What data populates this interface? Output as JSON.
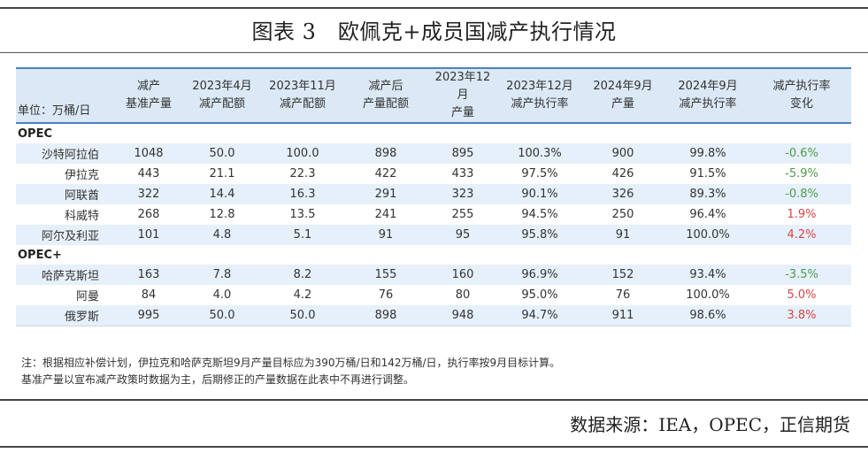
{
  "title": "图表 3　欧佩克+成员国减产执行情况",
  "colors": {
    "header_bg": "#dbe8f5",
    "stripe_bg": "#e6f0fa",
    "negative_text": "#4e9a4e",
    "positive_text": "#d64545",
    "header_border": "#4f81bd"
  },
  "table": {
    "headers": [
      [
        "单位：万桶/日"
      ],
      [
        "减产",
        "基准产量"
      ],
      [
        "2023年4月",
        "减产配额"
      ],
      [
        "2023年11月",
        "减产配额"
      ],
      [
        "减产后",
        "产量配额"
      ],
      [
        "2023年12月",
        "产量"
      ],
      [
        "2023年12月",
        "减产执行率"
      ],
      [
        "2024年9月",
        "产量"
      ],
      [
        "2024年9月",
        "减产执行率"
      ],
      [
        "减产执行率",
        "变化"
      ]
    ],
    "groups": [
      {
        "name": "OPEC",
        "rows": [
          [
            "沙特阿拉伯",
            "1048",
            "50.0",
            "100.0",
            "898",
            "895",
            "100.3%",
            "900",
            "99.8%",
            "-0.6%"
          ],
          [
            "伊拉克",
            "443",
            "21.1",
            "22.3",
            "422",
            "433",
            "97.5%",
            "426",
            "91.5%",
            "-5.9%"
          ],
          [
            "阿联酋",
            "322",
            "14.4",
            "16.3",
            "291",
            "323",
            "90.1%",
            "326",
            "89.3%",
            "-0.8%"
          ],
          [
            "科威特",
            "268",
            "12.8",
            "13.5",
            "241",
            "255",
            "94.5%",
            "250",
            "96.4%",
            "1.9%"
          ],
          [
            "阿尔及利亚",
            "101",
            "4.8",
            "5.1",
            "91",
            "95",
            "95.8%",
            "91",
            "100.0%",
            "4.2%"
          ]
        ]
      },
      {
        "name": "OPEC+",
        "rows": [
          [
            "哈萨克斯坦",
            "163",
            "7.8",
            "8.2",
            "155",
            "160",
            "96.9%",
            "152",
            "93.4%",
            "-3.5%"
          ],
          [
            "阿曼",
            "84",
            "4.0",
            "4.2",
            "76",
            "80",
            "95.0%",
            "76",
            "100.0%",
            "5.0%"
          ],
          [
            "俄罗斯",
            "995",
            "50.0",
            "50.0",
            "898",
            "948",
            "94.7%",
            "911",
            "98.6%",
            "3.8%"
          ]
        ]
      }
    ]
  },
  "notes": [
    "注：根据相应补偿计划，伊拉克和哈萨克斯坦9月产量目标应为390万桶/日和142万桶/日，执行率按9月目标计算。",
    "基准产量以宣布减产政策时数据为主，后期修正的产量数据在此表中不再进行调整。"
  ],
  "source": "数据来源：IEA，OPEC，正信期货"
}
